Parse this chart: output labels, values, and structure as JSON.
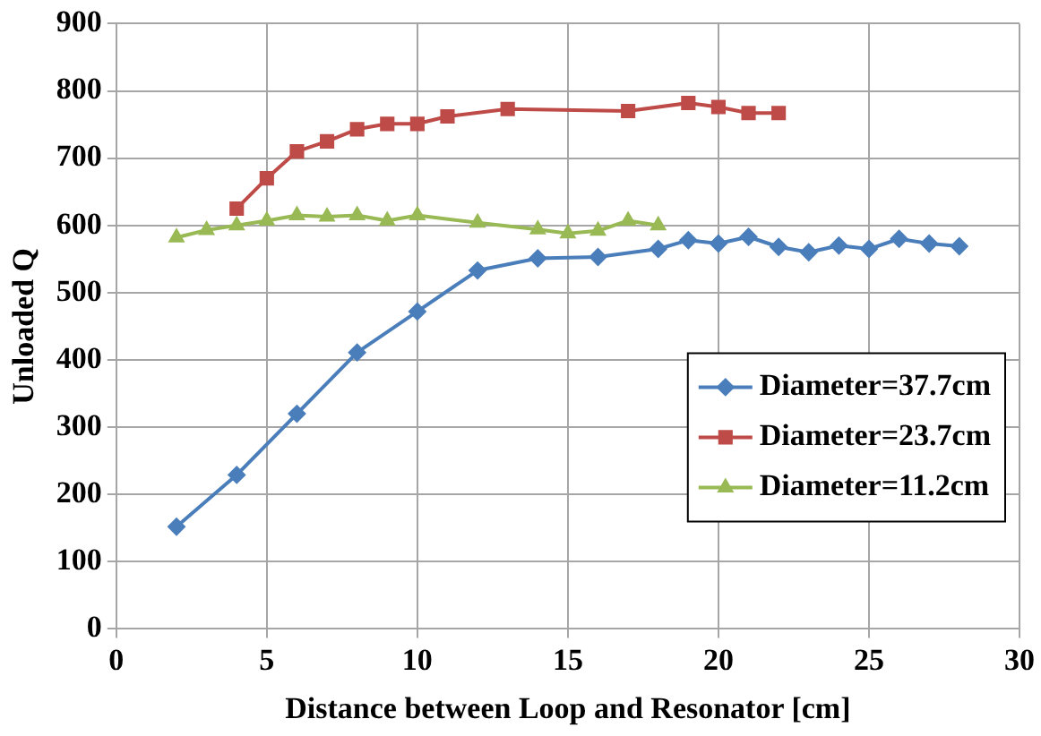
{
  "chart_data": {
    "type": "line",
    "xlabel": "Distance between Loop and Resonator [cm]",
    "ylabel": "Unloaded Q",
    "xlim": [
      0,
      30
    ],
    "xticks": [
      0,
      5,
      10,
      15,
      20,
      25,
      30
    ],
    "ylim": [
      0,
      900
    ],
    "yticks": [
      0,
      100,
      200,
      300,
      400,
      500,
      600,
      700,
      800,
      900
    ],
    "grid": true,
    "legend": "bottom right",
    "line_style": "solid",
    "series": [
      {
        "name": "Diameter=37.7cm",
        "color": "#4a7ebb",
        "marker": "diamond",
        "x": [
          2,
          4,
          6,
          8,
          10,
          12,
          14,
          16,
          18,
          19,
          20,
          21,
          22,
          23,
          24,
          25,
          26,
          27,
          28
        ],
        "values": [
          152,
          229,
          320,
          411,
          472,
          533,
          551,
          553,
          565,
          578,
          573,
          583,
          568,
          560,
          570,
          565,
          580,
          573,
          569
        ]
      },
      {
        "name": "Diameter=23.7cm",
        "color": "#be4b48",
        "marker": "square",
        "x": [
          4,
          5,
          6,
          7,
          8,
          9,
          10,
          11,
          13,
          17,
          19,
          20,
          21,
          22
        ],
        "values": [
          625,
          670,
          710,
          725,
          743,
          751,
          751,
          762,
          773,
          770,
          782,
          776,
          767,
          767
        ]
      },
      {
        "name": "Diameter=11.2cm",
        "color": "#98b954",
        "marker": "triangle",
        "x": [
          2,
          3,
          4,
          5,
          6,
          7,
          8,
          9,
          10,
          12,
          14,
          15,
          16,
          17,
          18
        ],
        "values": [
          582,
          593,
          600,
          607,
          615,
          613,
          615,
          607,
          615,
          604,
          594,
          588,
          592,
          607,
          600
        ]
      }
    ]
  }
}
